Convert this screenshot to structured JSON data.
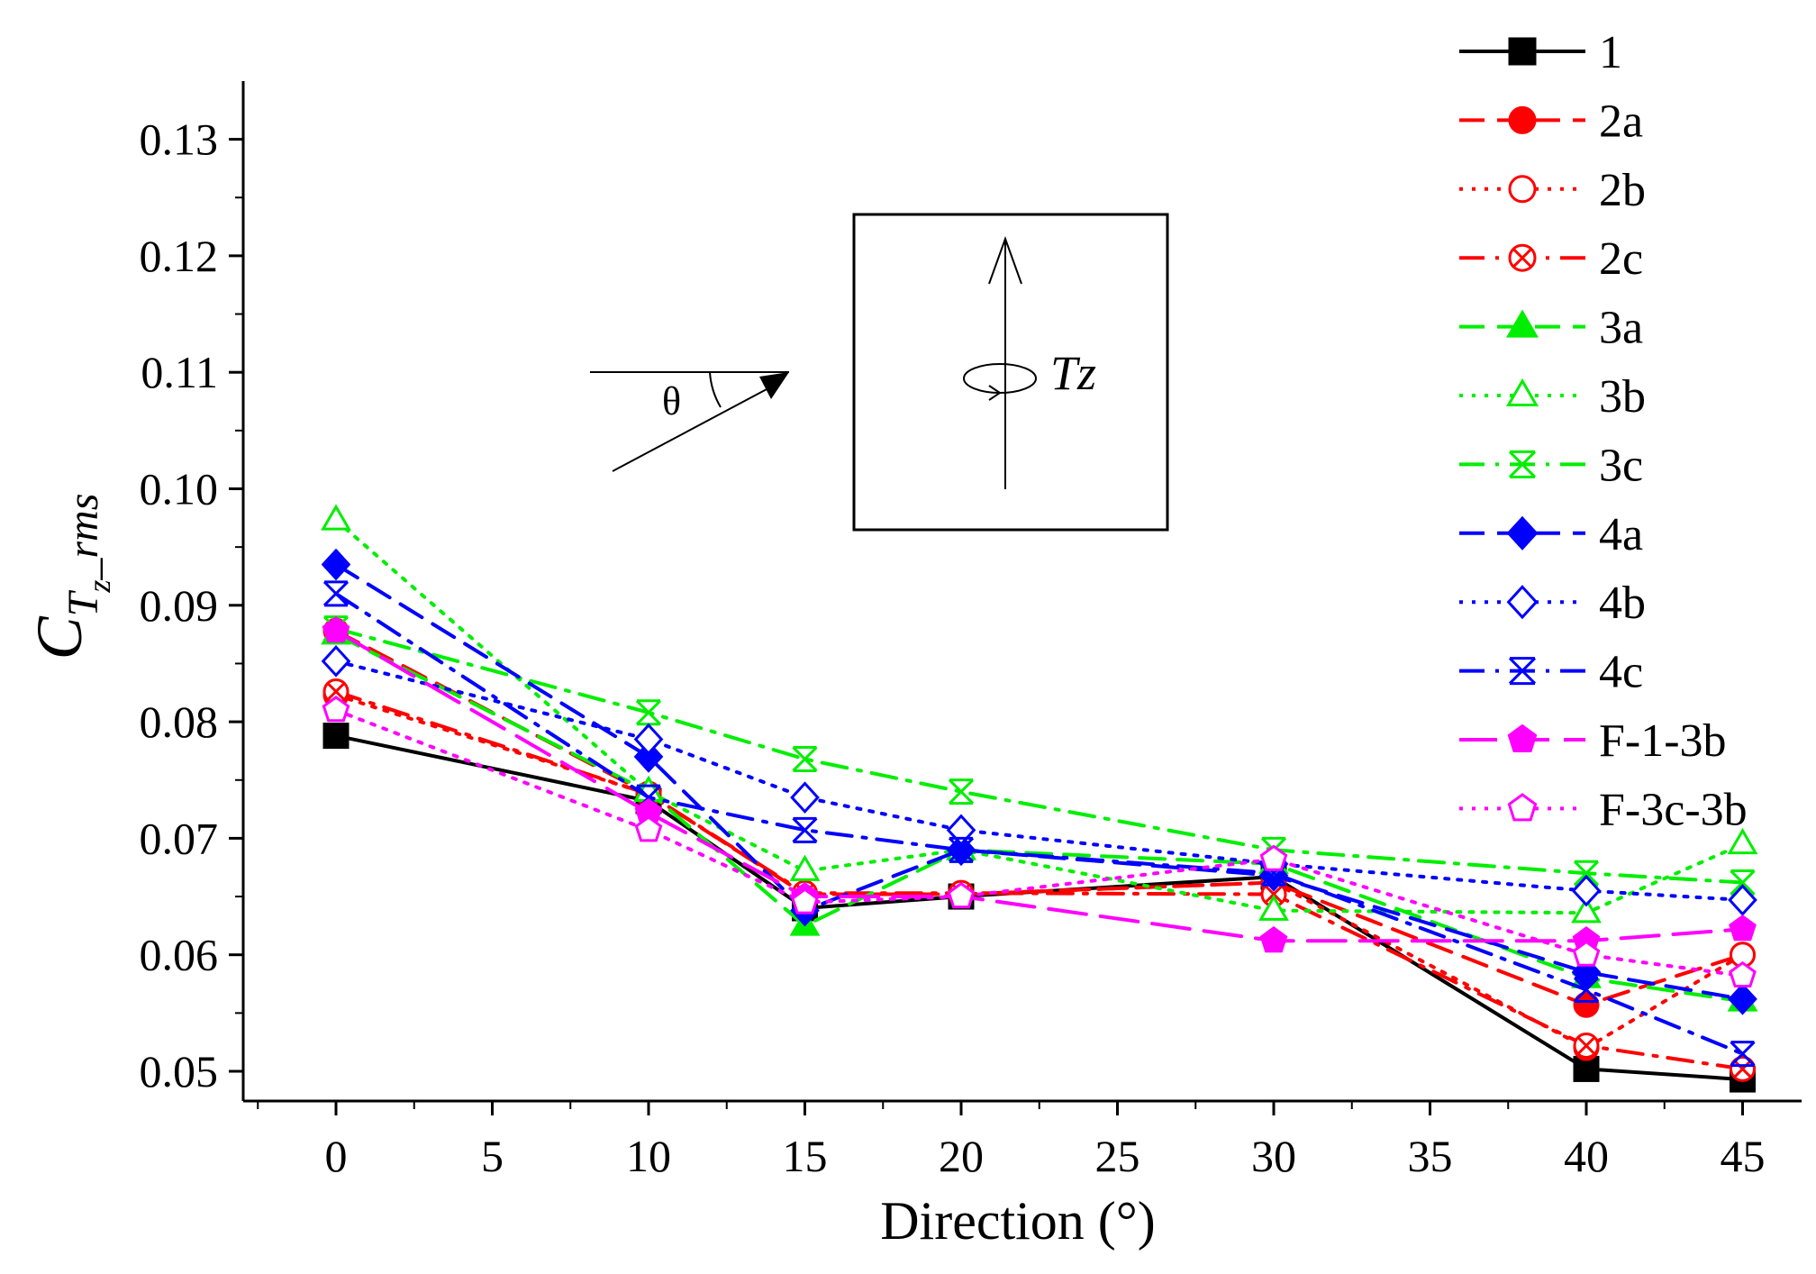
{
  "chart_data": {
    "type": "line",
    "title": "",
    "xlabel": "Direction (°)",
    "ylabel": {
      "main": "C",
      "sub": "T",
      "subsub": "z",
      "tail": "_rms"
    },
    "xlim": [
      -5,
      47
    ],
    "ylim": [
      0.048,
      0.135
    ],
    "xticks": [
      0,
      5,
      10,
      15,
      20,
      25,
      30,
      35,
      40,
      45
    ],
    "yticks": [
      0.05,
      0.06,
      0.07,
      0.08,
      0.09,
      0.1,
      0.11,
      0.12,
      0.13
    ],
    "ytick_labels": [
      "0.05",
      "0.06",
      "0.07",
      "0.08",
      "0.09",
      "0.10",
      "0.11",
      "0.12",
      "0.13"
    ],
    "x": [
      0,
      10,
      15,
      20,
      30,
      40,
      45
    ],
    "legend_position": "right",
    "series": [
      {
        "name": "1",
        "color": "#000000",
        "dash": "solid",
        "marker": "square",
        "fill": true,
        "values": [
          0.0788,
          0.0732,
          0.064,
          0.065,
          0.0667,
          0.0502,
          0.0493
        ]
      },
      {
        "name": "2a",
        "color": "#ff0000",
        "dash": "dash",
        "marker": "circle",
        "fill": true,
        "values": [
          0.0878,
          0.0738,
          0.0652,
          0.0652,
          0.0662,
          0.0557,
          0.06
        ]
      },
      {
        "name": "2b",
        "color": "#ff0000",
        "dash": "dot",
        "marker": "circle",
        "fill": false,
        "values": [
          0.0823,
          0.0738,
          0.0652,
          0.0652,
          0.0662,
          0.052,
          0.06
        ]
      },
      {
        "name": "2c",
        "color": "#ff0000",
        "dash": "dashdot",
        "marker": "circlex",
        "fill": false,
        "values": [
          0.0826,
          0.0738,
          0.0653,
          0.0653,
          0.0652,
          0.0522,
          0.0502
        ]
      },
      {
        "name": "3a",
        "color": "#00ee00",
        "dash": "dash",
        "marker": "triangle",
        "fill": true,
        "values": [
          0.0875,
          0.074,
          0.0625,
          0.069,
          0.0678,
          0.058,
          0.056
        ]
      },
      {
        "name": "3b",
        "color": "#00ee00",
        "dash": "dot",
        "marker": "triangle",
        "fill": false,
        "values": [
          0.0973,
          0.074,
          0.0672,
          0.069,
          0.0638,
          0.0636,
          0.0695
        ]
      },
      {
        "name": "3c",
        "color": "#00ee00",
        "dash": "dashdot",
        "marker": "starx",
        "fill": false,
        "values": [
          0.088,
          0.0808,
          0.0768,
          0.074,
          0.069,
          0.067,
          0.0662
        ]
      },
      {
        "name": "4a",
        "color": "#0000ff",
        "dash": "dash",
        "marker": "diamond",
        "fill": true,
        "values": [
          0.0935,
          0.077,
          0.0638,
          0.069,
          0.0668,
          0.0585,
          0.0562
        ]
      },
      {
        "name": "4b",
        "color": "#0000ff",
        "dash": "dot",
        "marker": "diamond",
        "fill": false,
        "values": [
          0.0852,
          0.0785,
          0.0735,
          0.0707,
          0.0678,
          0.0655,
          0.0647
        ]
      },
      {
        "name": "4c",
        "color": "#0000ff",
        "dash": "dashdot",
        "marker": "starx",
        "fill": false,
        "values": [
          0.091,
          0.0735,
          0.0707,
          0.069,
          0.067,
          0.057,
          0.0515
        ]
      },
      {
        "name": "F-1-3b",
        "color": "#ff00ff",
        "dash": "longdash",
        "marker": "pentagon",
        "fill": true,
        "values": [
          0.0878,
          0.0722,
          0.065,
          0.065,
          0.0612,
          0.0612,
          0.0622
        ]
      },
      {
        "name": "F-3c-3b",
        "color": "#ff00ff",
        "dash": "dot",
        "marker": "pentagon",
        "fill": false,
        "values": [
          0.081,
          0.0707,
          0.0645,
          0.065,
          0.0682,
          0.06,
          0.0582
        ]
      }
    ]
  },
  "inset": {
    "angle_label": "θ",
    "torque_label": "Tz"
  }
}
